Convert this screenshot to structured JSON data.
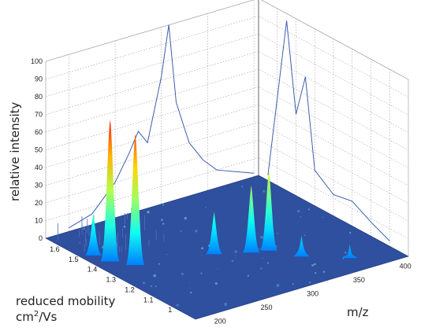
{
  "chart_data": {
    "type": "surface3d",
    "title": "",
    "xlabel": "m/z",
    "ylabel_line1": "reduced mobility",
    "ylabel_line2": "cm²/Vs",
    "zlabel": "relative intensity",
    "x_ticks": [
      "200",
      "250",
      "300",
      "350",
      "400"
    ],
    "y_ticks": [
      "1",
      "1.1",
      "1.2",
      "1.3",
      "1.4",
      "1.5",
      "1.6"
    ],
    "z_ticks": [
      "0",
      "10",
      "20",
      "30",
      "40",
      "50",
      "60",
      "70",
      "80",
      "90",
      "100"
    ],
    "xlim": [
      175,
      405
    ],
    "ylim": [
      0.9,
      1.7
    ],
    "zlim": [
      0,
      100
    ],
    "grid": true,
    "colormap": "jet",
    "base_color": "#2f4f9f",
    "line_color": "#3d5fae",
    "peaks": [
      {
        "mz": 190,
        "mobility": 1.43,
        "intensity": 80
      },
      {
        "mz": 203,
        "mobility": 1.36,
        "intensity": 74
      },
      {
        "mz": 186,
        "mobility": 1.5,
        "intensity": 24
      },
      {
        "mz": 272,
        "mobility": 1.28,
        "intensity": 24
      },
      {
        "mz": 300,
        "mobility": 1.22,
        "intensity": 38
      },
      {
        "mz": 315,
        "mobility": 1.2,
        "intensity": 45
      },
      {
        "mz": 330,
        "mobility": 1.1,
        "intensity": 12
      },
      {
        "mz": 362,
        "mobility": 1.0,
        "intensity": 8
      }
    ],
    "mz_projection": [
      {
        "mz": 200,
        "intensity": 2
      },
      {
        "mz": 225,
        "intensity": 6
      },
      {
        "mz": 250,
        "intensity": 20
      },
      {
        "mz": 265,
        "intensity": 34
      },
      {
        "mz": 275,
        "intensity": 45
      },
      {
        "mz": 285,
        "intensity": 37
      },
      {
        "mz": 300,
        "intensity": 72
      },
      {
        "mz": 308,
        "intensity": 100
      },
      {
        "mz": 316,
        "intensity": 55
      },
      {
        "mz": 330,
        "intensity": 30
      },
      {
        "mz": 345,
        "intensity": 18
      },
      {
        "mz": 360,
        "intensity": 10
      },
      {
        "mz": 380,
        "intensity": 6
      },
      {
        "mz": 400,
        "intensity": 2
      }
    ],
    "mobility_projection": [
      {
        "mobility": 1.65,
        "intensity": 3
      },
      {
        "mobility": 1.55,
        "intensity": 96
      },
      {
        "mobility": 1.5,
        "intensity": 46
      },
      {
        "mobility": 1.45,
        "intensity": 70
      },
      {
        "mobility": 1.4,
        "intensity": 20
      },
      {
        "mobility": 1.3,
        "intensity": 12
      },
      {
        "mobility": 1.2,
        "intensity": 14
      },
      {
        "mobility": 1.1,
        "intensity": 8
      },
      {
        "mobility": 1.0,
        "intensity": 3
      }
    ]
  }
}
